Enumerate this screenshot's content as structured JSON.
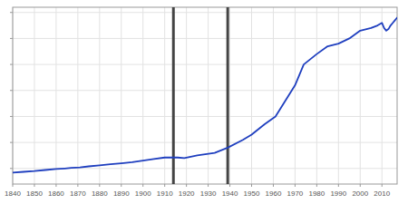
{
  "chart_data": {
    "type": "line",
    "x": [
      1840,
      1845,
      1850,
      1855,
      1860,
      1864,
      1867,
      1871,
      1875,
      1880,
      1885,
      1890,
      1895,
      1900,
      1905,
      1910,
      1916,
      1919,
      1925,
      1933,
      1939,
      1946,
      1950,
      1956,
      1961,
      1964,
      1970,
      1974,
      1980,
      1985,
      1990,
      1995,
      2000,
      2005,
      2008,
      2010,
      2011,
      2012,
      2013,
      2014,
      2015,
      2016,
      2017
    ],
    "values": [
      4200,
      4350,
      4500,
      4700,
      4900,
      5000,
      5100,
      5200,
      5400,
      5600,
      5800,
      6000,
      6200,
      6500,
      6800,
      7100,
      7100,
      7000,
      7500,
      8000,
      9000,
      10500,
      11500,
      13500,
      15000,
      17000,
      21000,
      25000,
      27000,
      28500,
      29000,
      30000,
      31500,
      32000,
      32500,
      33000,
      32000,
      31500,
      31800,
      32500,
      33000,
      33500,
      34000
    ],
    "color": "#1f3fbf",
    "xlim": [
      1840,
      2017
    ],
    "ylim": [
      2000,
      36000
    ],
    "xticks": [
      1840,
      1850,
      1860,
      1870,
      1880,
      1890,
      1900,
      1910,
      1920,
      1930,
      1940,
      1950,
      1960,
      1970,
      1980,
      1990,
      2000,
      2010
    ],
    "yticks": [
      5000,
      10000,
      15000,
      20000,
      25000,
      30000,
      35000
    ],
    "vlines": [
      1914,
      1939
    ],
    "grid": true,
    "tick_labels": "x"
  }
}
